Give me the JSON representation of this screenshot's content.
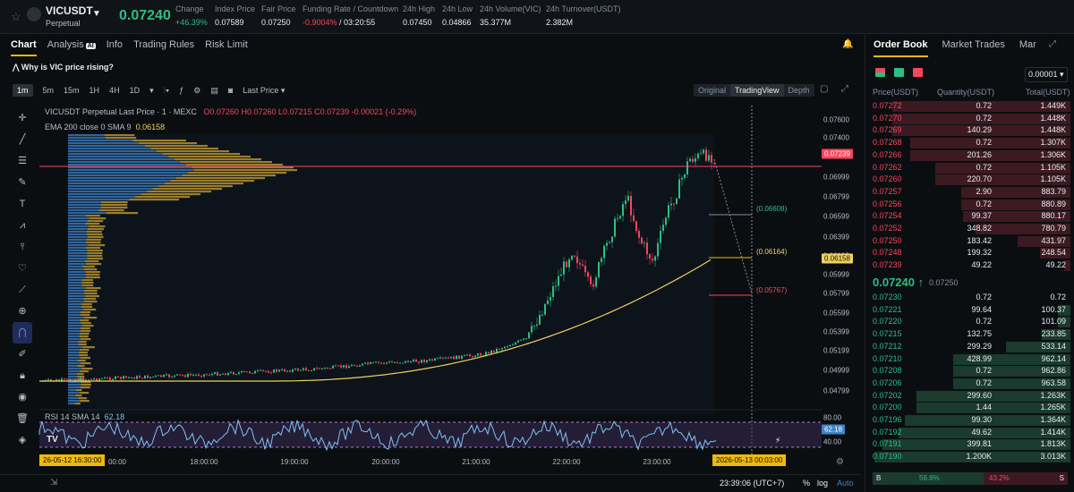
{
  "header": {
    "symbol": "VICUSDT",
    "contract": "Perpetual",
    "last_price": "0.07240",
    "stats": [
      {
        "label": "Change",
        "value": "+46.39%",
        "color": "green"
      },
      {
        "label": "Index Price",
        "value": "0.07589",
        "color": ""
      },
      {
        "label": "Fair Price",
        "value": "0.07250",
        "color": ""
      },
      {
        "label": "Funding Rate / Countdown",
        "value": "-0.9004%",
        "value2": "/ 03:20:55",
        "color": "red"
      },
      {
        "label": "24h High",
        "value": "0.07450",
        "color": ""
      },
      {
        "label": "24h Low",
        "value": "0.04866",
        "color": ""
      },
      {
        "label": "24h Volume(VIC)",
        "value": "35.377M",
        "color": ""
      },
      {
        "label": "24h Turnover(USDT)",
        "value": "2.382M",
        "color": ""
      }
    ]
  },
  "tabs": [
    "Chart",
    "Analysis",
    "Info",
    "Trading Rules",
    "Risk Limit"
  ],
  "analysis_badge": "AI",
  "banner": "Why is VIC price rising?",
  "toolbar": {
    "intervals": [
      "1m",
      "5m",
      "15m",
      "1H",
      "4H",
      "1D"
    ],
    "last_price_select": "Last Price",
    "views": [
      "Original",
      "TradingView",
      "Depth"
    ]
  },
  "chart_legend": {
    "title": "VICUSDT Perpetual Last Price · 1 · MEXC",
    "open": "O0.07260",
    "high": "H0.07260",
    "low": "L0.07215",
    "close": "C0.07239",
    "change": "-0.00021 (-0.29%)",
    "ema_label": "EMA 200 close 0 SMA 9",
    "ema_value": "0.06158",
    "rsi_label": "RSI 14 SMA 14",
    "rsi_value": "62.18"
  },
  "price_axis": [
    "0.07600",
    "0.07400",
    "0.06999",
    "0.06799",
    "0.06599",
    "0.06399",
    "0.06199",
    "0.05999",
    "0.05799",
    "0.05599",
    "0.05399",
    "0.05199",
    "0.04999",
    "0.04799"
  ],
  "price_tags": {
    "last": "0.07239",
    "ema": "0.06158",
    "rsi": "62.18"
  },
  "rsi_axis": [
    "80.00",
    "40.00"
  ],
  "annotations": [
    "(0.06608)",
    "(0.06164)",
    "(0.05767)"
  ],
  "time_axis": [
    "00:00",
    "18:00:00",
    "19:00:00",
    "20:00:00",
    "21:00:00",
    "22:00:00",
    "23:00:00"
  ],
  "time_tags": {
    "left": "26-05-12   16:30:00",
    "right": "2026-05-13   00:03:00"
  },
  "bottom": {
    "time": "23:39:06 (UTC+7)",
    "pct": "%",
    "log": "log",
    "auto": "Auto"
  },
  "orderbook": {
    "tabs": [
      "Order Book",
      "Market Trades",
      "Mar"
    ],
    "tick": "0.00001",
    "headers": [
      "Price(USDT)",
      "Quantity(USDT)",
      "Total(USDT)"
    ],
    "asks": [
      {
        "p": "0.07272",
        "q": "0.72",
        "t": "1.449K",
        "d": 0.88
      },
      {
        "p": "0.07270",
        "q": "0.72",
        "t": "1.448K",
        "d": 0.88
      },
      {
        "p": "0.07269",
        "q": "140.29",
        "t": "1.448K",
        "d": 0.88
      },
      {
        "p": "0.07268",
        "q": "0.72",
        "t": "1.307K",
        "d": 0.79
      },
      {
        "p": "0.07266",
        "q": "201.26",
        "t": "1.306K",
        "d": 0.79
      },
      {
        "p": "0.07262",
        "q": "0.72",
        "t": "1.105K",
        "d": 0.67
      },
      {
        "p": "0.07260",
        "q": "220.70",
        "t": "1.105K",
        "d": 0.67
      },
      {
        "p": "0.07257",
        "q": "2.90",
        "t": "883.79",
        "d": 0.54
      },
      {
        "p": "0.07256",
        "q": "0.72",
        "t": "880.89",
        "d": 0.54
      },
      {
        "p": "0.07254",
        "q": "99.37",
        "t": "880.17",
        "d": 0.53
      },
      {
        "p": "0.07252",
        "q": "348.82",
        "t": "780.79",
        "d": 0.47
      },
      {
        "p": "0.07250",
        "q": "183.42",
        "t": "431.97",
        "d": 0.26
      },
      {
        "p": "0.07248",
        "q": "199.32",
        "t": "248.54",
        "d": 0.15
      },
      {
        "p": "0.07239",
        "q": "49.22",
        "t": "49.22",
        "d": 0.03
      }
    ],
    "last_price": "0.07240 ↑",
    "mark_price": "0.07250",
    "bids": [
      {
        "p": "0.07230",
        "q": "0.72",
        "t": "0.72",
        "d": 0.0
      },
      {
        "p": "0.07221",
        "q": "99.64",
        "t": "100.37",
        "d": 0.06
      },
      {
        "p": "0.07220",
        "q": "0.72",
        "t": "101.09",
        "d": 0.06
      },
      {
        "p": "0.07215",
        "q": "132.75",
        "t": "233.85",
        "d": 0.14
      },
      {
        "p": "0.07212",
        "q": "299.29",
        "t": "533.14",
        "d": 0.32
      },
      {
        "p": "0.07210",
        "q": "428.99",
        "t": "962.14",
        "d": 0.58
      },
      {
        "p": "0.07208",
        "q": "0.72",
        "t": "962.86",
        "d": 0.58
      },
      {
        "p": "0.07206",
        "q": "0.72",
        "t": "963.58",
        "d": 0.58
      },
      {
        "p": "0.07202",
        "q": "299.60",
        "t": "1.263K",
        "d": 0.76
      },
      {
        "p": "0.07200",
        "q": "1.44",
        "t": "1.265K",
        "d": 0.76
      },
      {
        "p": "0.07196",
        "q": "99.30",
        "t": "1.364K",
        "d": 0.82
      },
      {
        "p": "0.07192",
        "q": "49.62",
        "t": "1.414K",
        "d": 0.85
      },
      {
        "p": "0.07191",
        "q": "399.81",
        "t": "1.813K",
        "d": 0.93
      },
      {
        "p": "0.07190",
        "q": "1.200K",
        "t": "3.013K",
        "d": 0.97
      }
    ],
    "ratio": {
      "b_label": "B",
      "b": "56.8%",
      "s": "43.2%",
      "s_label": "S",
      "b_frac": 0.568
    }
  }
}
